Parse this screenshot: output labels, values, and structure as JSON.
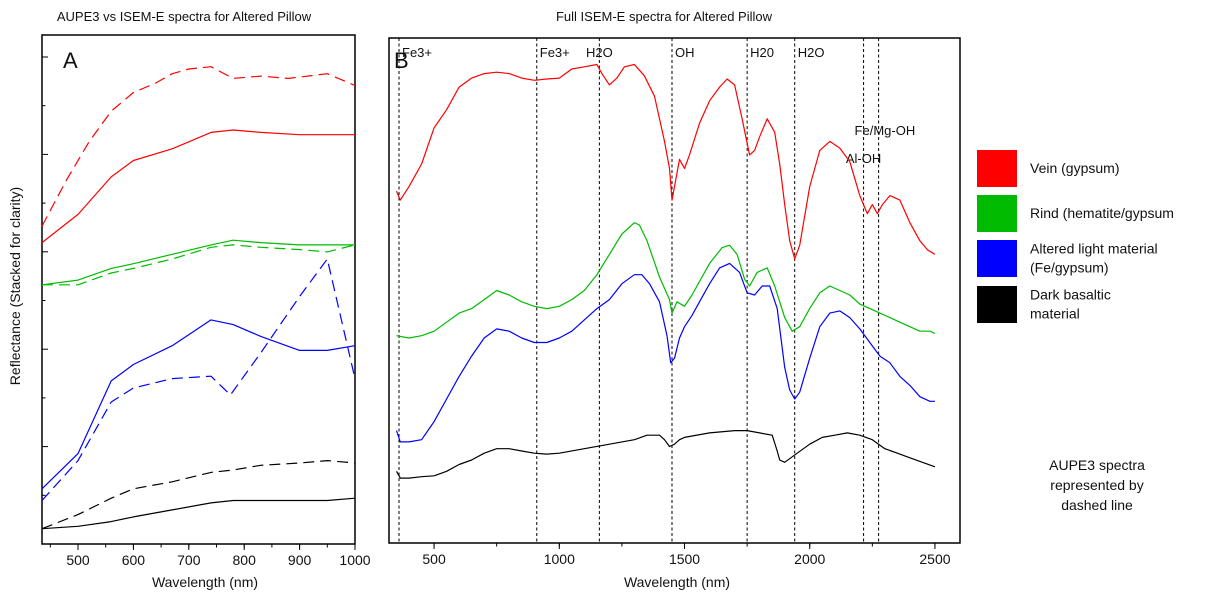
{
  "figure": {
    "ylabel": "Reflectance (Stacked for clarity)",
    "note_lines": [
      "AUPE3 spectra",
      "represented by",
      "dashed line"
    ]
  },
  "legend": {
    "items": [
      {
        "label_lines": [
          "Vein (gypsum)"
        ],
        "color": "#ff0000"
      },
      {
        "label_lines": [
          "Rind (hematite/gypsum"
        ],
        "color": "#00bb00"
      },
      {
        "label_lines": [
          "Altered light material",
          "(Fe/gypsum)"
        ],
        "color": "#0000ff"
      },
      {
        "label_lines": [
          "Dark basaltic",
          "material"
        ],
        "color": "#000000"
      }
    ]
  },
  "chart_data": [
    {
      "id": "A",
      "type": "line",
      "panel_label": "A",
      "title": "AUPE3 vs ISEM-E spectra for Altered Pillow",
      "xlabel": "Wavelength (nm)",
      "xlim": [
        435,
        1000
      ],
      "xticks": [
        500,
        600,
        700,
        800,
        900,
        1000
      ],
      "ylim": [
        0,
        100
      ],
      "series": [
        {
          "group": "Vein (gypsum)",
          "style": "solid",
          "color": "#ff0000",
          "x": [
            435,
            500,
            560,
            600,
            670,
            740,
            780,
            830,
            900,
            950,
            1000
          ],
          "y": [
            61.5,
            67.5,
            75.5,
            79,
            81.5,
            85,
            85.5,
            85,
            84.5,
            84.5,
            84.5
          ]
        },
        {
          "group": "Vein (gypsum)",
          "style": "dashed",
          "color": "#ff0000",
          "x": [
            435,
            480,
            520,
            560,
            600,
            640,
            670,
            700,
            740,
            780,
            830,
            880,
            950,
            1000
          ],
          "y": [
            65,
            75,
            83,
            89.5,
            93.5,
            95.5,
            97.5,
            98.5,
            99,
            96.5,
            97,
            96.5,
            97.5,
            95
          ]
        },
        {
          "group": "Rind (hematite/gypsum",
          "style": "solid",
          "color": "#00bb00",
          "x": [
            435,
            500,
            560,
            600,
            670,
            740,
            780,
            830,
            900,
            950,
            1000
          ],
          "y": [
            52.5,
            53.5,
            56,
            57,
            59,
            61,
            62,
            61.5,
            61,
            61,
            61
          ]
        },
        {
          "group": "Rind (hematite/gypsum",
          "style": "dashed",
          "color": "#00bb00",
          "x": [
            435,
            500,
            560,
            600,
            670,
            740,
            780,
            830,
            900,
            950,
            1000
          ],
          "y": [
            52.5,
            52.5,
            55,
            56,
            58,
            60.5,
            61,
            60.5,
            60,
            59.5,
            61
          ]
        },
        {
          "group": "Altered light material",
          "style": "solid",
          "color": "#0000ff",
          "x": [
            435,
            500,
            560,
            600,
            670,
            740,
            780,
            830,
            900,
            950,
            1000
          ],
          "y": [
            9,
            16.5,
            32,
            35.5,
            39.5,
            45,
            44,
            41.5,
            38.5,
            38.5,
            39.5
          ]
        },
        {
          "group": "Altered light material",
          "style": "dashed",
          "color": "#0000ff",
          "x": [
            435,
            500,
            560,
            600,
            670,
            740,
            775,
            830,
            900,
            950,
            1000
          ],
          "y": [
            6.5,
            15,
            27.5,
            30.5,
            32.5,
            33,
            29,
            38,
            50,
            58,
            32.5
          ]
        },
        {
          "group": "Dark basaltic",
          "style": "solid",
          "color": "#000000",
          "x": [
            435,
            500,
            560,
            600,
            670,
            740,
            780,
            830,
            900,
            950,
            1000
          ],
          "y": [
            0.5,
            1,
            2,
            3,
            4.5,
            6,
            6.5,
            6.5,
            6.5,
            6.5,
            7
          ]
        },
        {
          "group": "Dark basaltic",
          "style": "dashed",
          "color": "#000000",
          "x": [
            435,
            500,
            560,
            600,
            670,
            740,
            780,
            830,
            900,
            950,
            1000
          ],
          "y": [
            0.5,
            3.5,
            7,
            9,
            10.5,
            12.5,
            13,
            14,
            14.5,
            15,
            14.5
          ]
        }
      ]
    },
    {
      "id": "B",
      "type": "line",
      "panel_label": "B",
      "title": "Full ISEM-E spectra for Altered Pillow",
      "xlabel": "Wavelength (nm)",
      "xlim": [
        320,
        2600
      ],
      "xticks": [
        500,
        1000,
        1500,
        2000,
        2500
      ],
      "ylim": [
        0,
        100
      ],
      "reference_lines": [
        {
          "x": 360,
          "label": "Fe3+",
          "label_x": 372,
          "label_level": 0
        },
        {
          "x": 910,
          "label": "Fe3+",
          "label_x": 922,
          "label_level": 0
        },
        {
          "x": 1160,
          "label": "H2O",
          "label_x": 1160,
          "label_level": 0
        },
        {
          "x": 1450,
          "label": "OH",
          "label_x": 1462,
          "label_level": 0
        },
        {
          "x": 1750,
          "label": "H20",
          "label_x": 1762,
          "label_level": 0
        },
        {
          "x": 1940,
          "label": "H2O",
          "label_x": 1952,
          "label_level": 0
        },
        {
          "x": 2215,
          "label": "Al-OH",
          "label_x": 2215,
          "label_level": 2
        },
        {
          "x": 2275,
          "label": "Fe/Mg-OH",
          "label_x": 2300,
          "label_level": 1
        }
      ],
      "series": [
        {
          "group": "Vein (gypsum)",
          "color": "#ff0000",
          "x": [
            350,
            365,
            400,
            450,
            500,
            550,
            600,
            650,
            700,
            750,
            800,
            850,
            900,
            950,
            1000,
            1050,
            1100,
            1150,
            1170,
            1200,
            1230,
            1260,
            1300,
            1340,
            1380,
            1420,
            1440,
            1450,
            1460,
            1480,
            1500,
            1520,
            1560,
            1600,
            1640,
            1670,
            1700,
            1730,
            1760,
            1780,
            1800,
            1830,
            1860,
            1880,
            1900,
            1920,
            1940,
            1960,
            2000,
            2040,
            2080,
            2120,
            2160,
            2200,
            2230,
            2250,
            2270,
            2290,
            2320,
            2360,
            2400,
            2440,
            2470,
            2500
          ],
          "y": [
            71,
            69,
            72,
            77,
            85,
            89,
            94,
            96,
            97,
            97.3,
            97,
            96,
            95.5,
            95.8,
            96,
            98,
            98.5,
            99,
            97,
            94.5,
            96,
            98.5,
            99,
            96.5,
            92,
            82,
            76,
            69,
            72,
            78,
            76,
            79,
            86,
            91,
            94,
            95.8,
            94.5,
            87,
            79,
            80,
            83,
            87,
            84,
            77,
            68,
            60,
            56,
            59,
            72,
            80,
            82,
            80.5,
            77.5,
            70,
            66,
            68,
            66,
            68,
            70,
            69,
            64,
            60,
            58,
            57
          ]
        },
        {
          "group": "Rind (hematite/gypsum",
          "color": "#00bb00",
          "x": [
            350,
            400,
            450,
            500,
            550,
            600,
            650,
            700,
            750,
            800,
            850,
            900,
            950,
            1000,
            1050,
            1100,
            1150,
            1200,
            1250,
            1300,
            1320,
            1350,
            1400,
            1440,
            1450,
            1470,
            1500,
            1530,
            1560,
            1600,
            1650,
            1680,
            1710,
            1740,
            1760,
            1790,
            1830,
            1860,
            1900,
            1930,
            1960,
            2000,
            2040,
            2080,
            2120,
            2160,
            2200,
            2240,
            2280,
            2320,
            2360,
            2400,
            2440,
            2480,
            2500
          ],
          "y": [
            39,
            38.5,
            39,
            40,
            42,
            44,
            45,
            47,
            49,
            48,
            46.5,
            45.5,
            45,
            45.5,
            47,
            49,
            52.5,
            57,
            61.5,
            64,
            63.5,
            60,
            52,
            47,
            44,
            46.5,
            45.5,
            48,
            51,
            55,
            58.5,
            59,
            57,
            51.5,
            50,
            53,
            54,
            50,
            43,
            40,
            41,
            45,
            48.5,
            50,
            49,
            48,
            46,
            45,
            44,
            43,
            42,
            41,
            40,
            40,
            39.5
          ]
        },
        {
          "group": "Altered light material",
          "color": "#0000ff",
          "x": [
            350,
            365,
            400,
            450,
            500,
            550,
            600,
            650,
            700,
            750,
            800,
            850,
            900,
            950,
            1000,
            1050,
            1100,
            1150,
            1200,
            1250,
            1300,
            1330,
            1360,
            1400,
            1430,
            1445,
            1460,
            1480,
            1500,
            1530,
            1560,
            1600,
            1640,
            1680,
            1720,
            1750,
            1780,
            1810,
            1840,
            1870,
            1900,
            1920,
            1940,
            1960,
            2000,
            2040,
            2080,
            2120,
            2160,
            2200,
            2240,
            2280,
            2320,
            2360,
            2400,
            2440,
            2480,
            2500
          ],
          "y": [
            18,
            15.5,
            15.5,
            16,
            20,
            25,
            30,
            34.5,
            38.5,
            40.5,
            40,
            38.5,
            37.5,
            37.5,
            38.5,
            40,
            42.5,
            45,
            47,
            50.5,
            52.5,
            52.5,
            50.5,
            46.5,
            39,
            33,
            34,
            38.5,
            41,
            43.5,
            46.5,
            50.5,
            54,
            55,
            53,
            48.5,
            48,
            50,
            50,
            45,
            32,
            27,
            25,
            26.5,
            34,
            41,
            44,
            44.5,
            43,
            40.5,
            37.5,
            34.5,
            33,
            30,
            28,
            25.5,
            24.5,
            24.5
          ]
        },
        {
          "group": "Dark basaltic",
          "color": "#000000",
          "x": [
            350,
            365,
            400,
            450,
            500,
            550,
            600,
            650,
            700,
            750,
            800,
            850,
            900,
            950,
            1000,
            1100,
            1200,
            1300,
            1350,
            1400,
            1420,
            1440,
            1460,
            1480,
            1500,
            1600,
            1700,
            1750,
            1800,
            1850,
            1870,
            1880,
            1900,
            1950,
            2000,
            2050,
            2100,
            2150,
            2200,
            2250,
            2300,
            2350,
            2400,
            2450,
            2500
          ],
          "y": [
            9,
            7.5,
            7.5,
            7.8,
            8,
            9,
            10.5,
            11.5,
            13,
            14,
            14,
            13.5,
            13,
            12.8,
            13,
            14,
            15,
            16,
            17,
            17,
            16,
            14.5,
            15,
            16,
            16.5,
            17.5,
            18,
            18,
            17.5,
            17,
            13.5,
            11.5,
            11,
            13,
            15,
            16.5,
            17,
            17.5,
            17,
            16,
            14,
            13,
            12,
            11,
            10
          ]
        }
      ]
    }
  ]
}
